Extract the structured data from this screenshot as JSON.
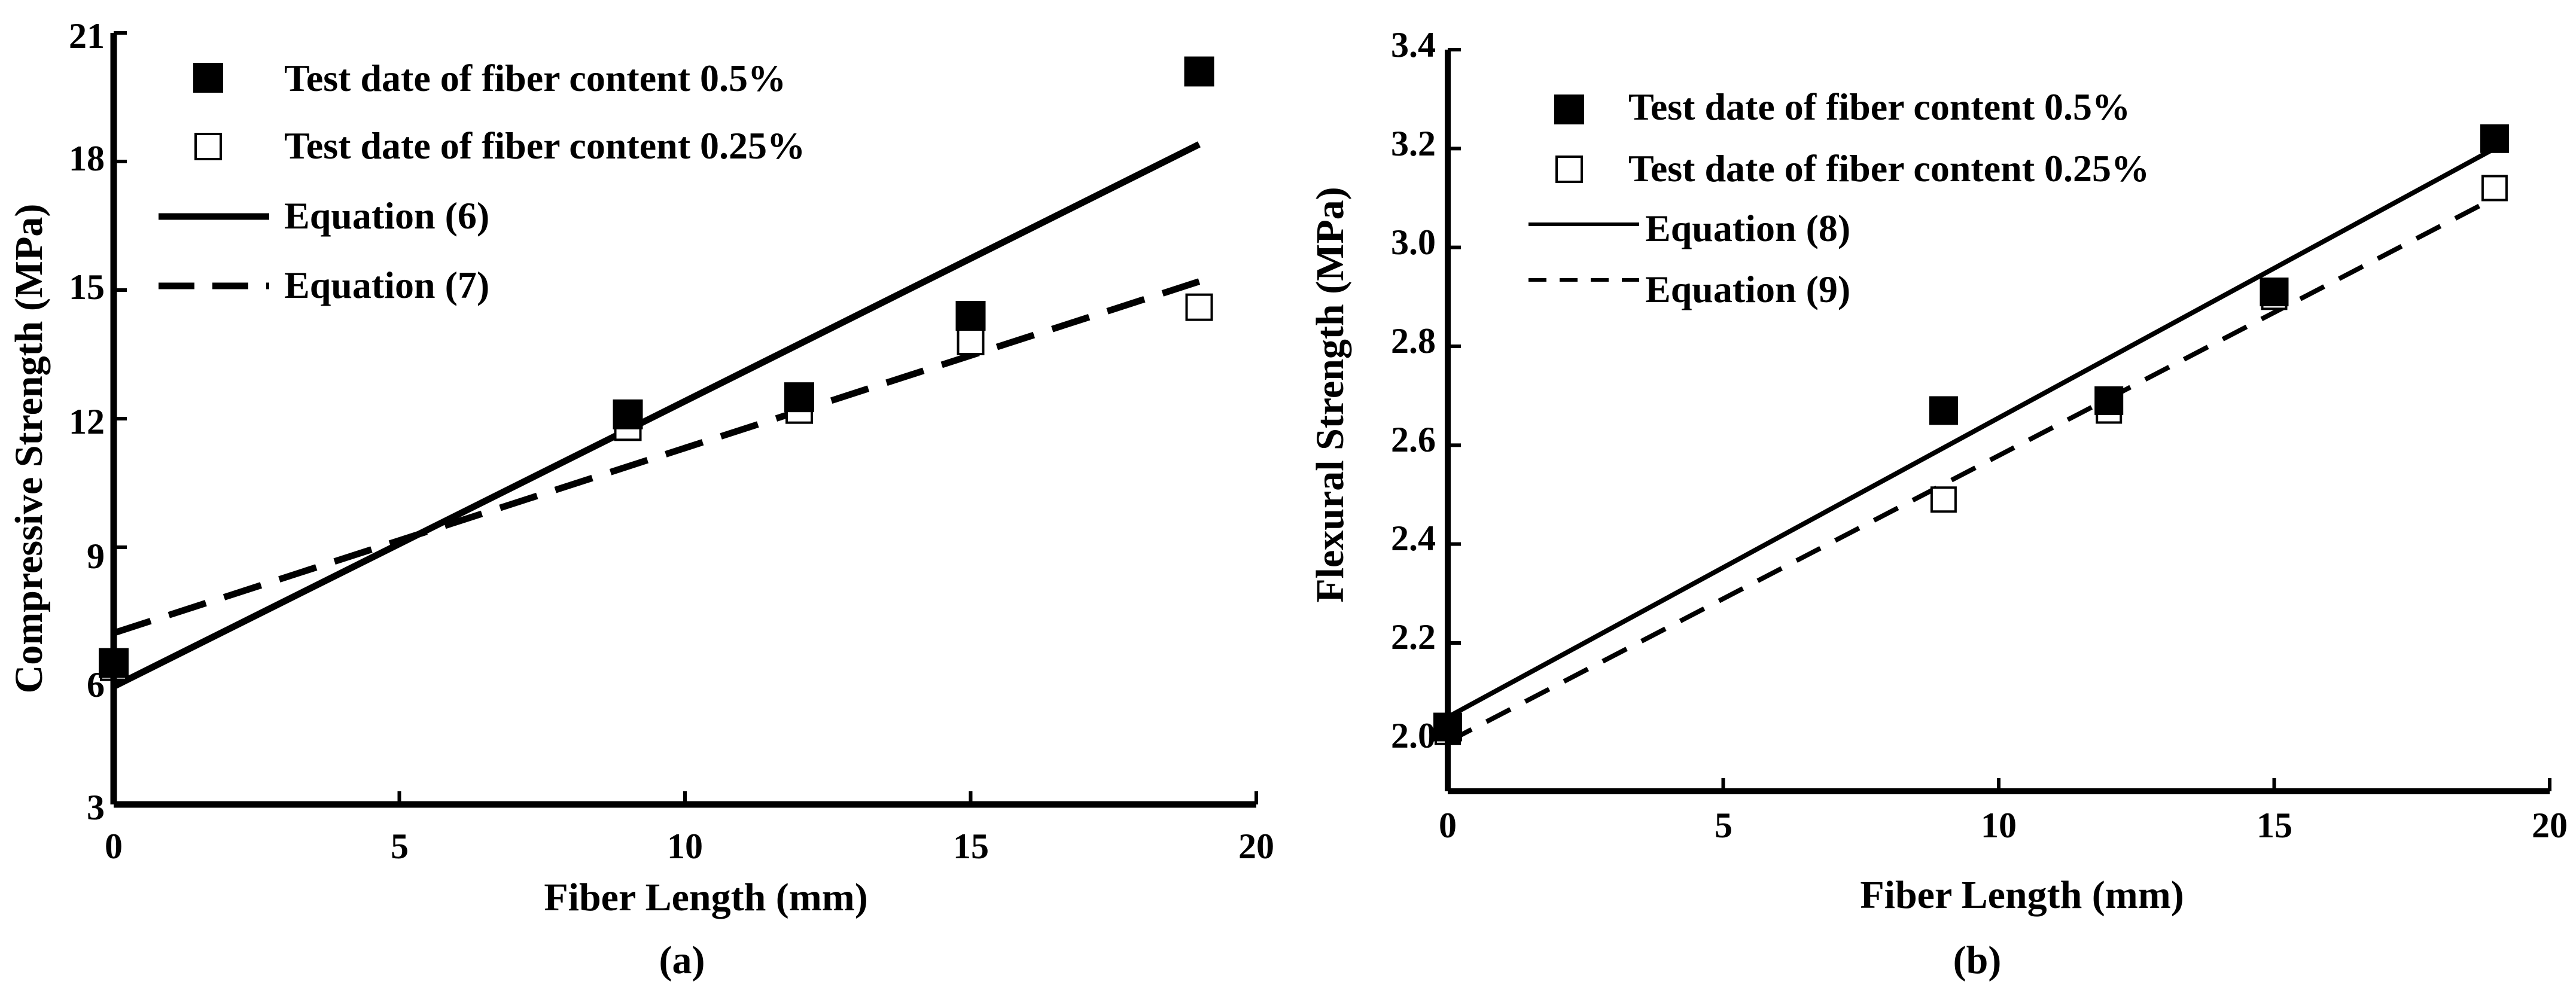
{
  "chart_data": [
    {
      "type": "scatter",
      "panel_label": "(a)",
      "xlabel": "Fiber Length (mm)",
      "ylabel": "Compressive Strength (MPa)",
      "xlim": [
        0,
        20
      ],
      "ylim": [
        3,
        21
      ],
      "x_ticks": [
        "0",
        "5",
        "10",
        "15",
        "20"
      ],
      "y_ticks": [
        "3",
        "6",
        "9",
        "12",
        "15",
        "18",
        "21"
      ],
      "legend_position": "top-left",
      "series": [
        {
          "name": "Test date of fiber content 0.5%",
          "marker": "filled-square",
          "x": [
            0,
            9,
            12,
            15,
            19
          ],
          "y": [
            6.3,
            12.1,
            12.5,
            14.4,
            20.1
          ]
        },
        {
          "name": "Test date of fiber content 0.25%",
          "marker": "open-square",
          "x": [
            0,
            9,
            12,
            15,
            19
          ],
          "y": [
            6.2,
            11.8,
            12.2,
            13.8,
            14.6
          ]
        }
      ],
      "lines": [
        {
          "name": "Equation (6)",
          "style": "solid",
          "x": [
            0,
            19
          ],
          "y": [
            5.75,
            18.4
          ]
        },
        {
          "name": "Equation (7)",
          "style": "dashed",
          "x": [
            0,
            19
          ],
          "y": [
            7.0,
            15.2
          ]
        }
      ]
    },
    {
      "type": "scatter",
      "panel_label": "(b)",
      "xlabel": "Fiber Length (mm)",
      "ylabel": "Flexural Strength (MPa)",
      "xlim": [
        0,
        20
      ],
      "ylim": [
        1.9,
        3.4
      ],
      "x_ticks": [
        "0",
        "5",
        "10",
        "15",
        "20"
      ],
      "y_ticks": [
        "2.0",
        "2.2",
        "2.4",
        "2.6",
        "2.8",
        "3.0",
        "3.2",
        "3.4"
      ],
      "legend_position": "top-left",
      "series": [
        {
          "name": "Test date of fiber content 0.5%",
          "marker": "filled-square",
          "x": [
            0,
            9,
            12,
            15,
            19
          ],
          "y": [
            2.03,
            2.67,
            2.69,
            2.91,
            3.22
          ]
        },
        {
          "name": "Test date of fiber content 0.25%",
          "marker": "open-square",
          "x": [
            0,
            9,
            12,
            15,
            19
          ],
          "y": [
            2.02,
            2.49,
            2.67,
            2.9,
            3.12
          ]
        }
      ],
      "lines": [
        {
          "name": "Equation (8)",
          "style": "solid",
          "x": [
            0,
            19
          ],
          "y": [
            2.05,
            3.2
          ]
        },
        {
          "name": "Equation (9)",
          "style": "dashed",
          "x": [
            0,
            19
          ],
          "y": [
            2.0,
            3.1
          ]
        }
      ]
    }
  ]
}
